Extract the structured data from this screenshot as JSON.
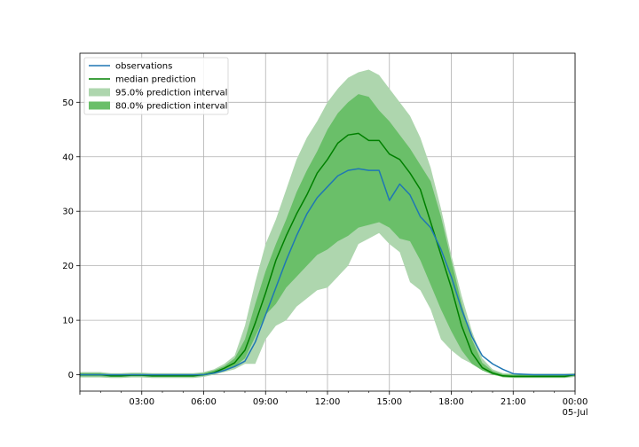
{
  "chart_data": {
    "type": "line",
    "title": "",
    "xlabel": "",
    "ylabel": "",
    "x_unit": "hours",
    "xlim": [
      0,
      24
    ],
    "ylim": [
      -3,
      59
    ],
    "grid": true,
    "legend_position": "top-left",
    "x_ticks": [
      {
        "value": 3,
        "label": "03:00"
      },
      {
        "value": 6,
        "label": "06:00"
      },
      {
        "value": 9,
        "label": "09:00"
      },
      {
        "value": 12,
        "label": "12:00"
      },
      {
        "value": 15,
        "label": "15:00"
      },
      {
        "value": 18,
        "label": "18:00"
      },
      {
        "value": 21,
        "label": "21:00"
      },
      {
        "value": 24,
        "label": "00:00",
        "sublabel": "05-Jul"
      }
    ],
    "y_ticks": [
      0,
      10,
      20,
      30,
      40,
      50
    ],
    "x": [
      0,
      0.5,
      1,
      1.5,
      2,
      2.5,
      3,
      3.5,
      4,
      4.5,
      5,
      5.5,
      6,
      6.5,
      7,
      7.5,
      8,
      8.5,
      9,
      9.5,
      10,
      10.5,
      11,
      11.5,
      12,
      12.5,
      13,
      13.5,
      14,
      14.5,
      15,
      15.5,
      16,
      16.5,
      17,
      17.5,
      18,
      18.5,
      19,
      19.5,
      20,
      20.5,
      21,
      21.5,
      22,
      22.5,
      23,
      23.5,
      24
    ],
    "series": [
      {
        "name": "observations",
        "type": "line",
        "color": "#1f77b4",
        "values": [
          0,
          0,
          0,
          0,
          0,
          0,
          0,
          0,
          0,
          0,
          0,
          0,
          0,
          0.3,
          0.8,
          1.5,
          2.5,
          6,
          11,
          16,
          21,
          25.5,
          29.5,
          32.5,
          34.5,
          36.5,
          37.5,
          37.8,
          37.5,
          37.5,
          32,
          35,
          33,
          29,
          27,
          23,
          18,
          12,
          7,
          3.5,
          2,
          1,
          0.2,
          0.1,
          0,
          0,
          0,
          0,
          0
        ]
      },
      {
        "name": "median prediction",
        "type": "line",
        "color": "#008000",
        "values": [
          0,
          0,
          0,
          -0.2,
          -0.2,
          -0.1,
          -0.1,
          -0.2,
          -0.2,
          -0.2,
          -0.2,
          -0.2,
          0,
          0.4,
          1.2,
          2.2,
          4.5,
          9.5,
          15,
          21,
          25.5,
          29.5,
          33,
          37,
          39.5,
          42.5,
          44,
          44.3,
          43,
          43,
          40.5,
          39.5,
          37,
          34,
          28,
          22,
          16,
          9,
          4,
          1.3,
          0.3,
          -0.2,
          -0.3,
          -0.3,
          -0.3,
          -0.3,
          -0.3,
          -0.3,
          0
        ]
      },
      {
        "name": "95.0% prediction interval",
        "type": "band",
        "color": "#aed6ae",
        "lower": [
          -0.5,
          -0.5,
          -0.5,
          -0.6,
          -0.6,
          -0.5,
          -0.5,
          -0.6,
          -0.6,
          -0.6,
          -0.6,
          -0.6,
          -0.4,
          0,
          0.5,
          1,
          2,
          2,
          6.5,
          9,
          10,
          12.5,
          14,
          15.5,
          16,
          18,
          20,
          24,
          25,
          26,
          24,
          22.5,
          17,
          15.5,
          12,
          6.5,
          4.5,
          3,
          2,
          0.8,
          0.2,
          -0.5,
          -0.6,
          -0.6,
          -0.6,
          -0.6,
          -0.6,
          -0.6,
          -0.4
        ],
        "upper": [
          0.5,
          0.5,
          0.5,
          0.3,
          0.3,
          0.4,
          0.4,
          0.3,
          0.3,
          0.3,
          0.3,
          0.3,
          0.5,
          1,
          2,
          3.5,
          9,
          17,
          24,
          28.5,
          34,
          39.5,
          43.5,
          46.5,
          50,
          52.5,
          54.5,
          55.5,
          56,
          55,
          52.5,
          50,
          47.5,
          43.5,
          38,
          30.5,
          22,
          14.5,
          8,
          3,
          1,
          0.3,
          0.2,
          0.2,
          0.2,
          0.2,
          0.2,
          0.2,
          0.3
        ]
      },
      {
        "name": "80.0% prediction interval",
        "type": "band",
        "color": "#6abf69",
        "lower": [
          -0.3,
          -0.3,
          -0.3,
          -0.4,
          -0.4,
          -0.3,
          -0.3,
          -0.4,
          -0.4,
          -0.4,
          -0.4,
          -0.4,
          -0.2,
          0.2,
          0.8,
          1.5,
          3,
          7,
          11,
          13,
          16,
          18,
          20,
          22,
          23,
          24.5,
          25.5,
          27,
          27.5,
          28,
          27,
          25,
          24.5,
          21,
          16.5,
          12,
          8,
          4.5,
          2,
          0.8,
          0,
          -0.4,
          -0.5,
          -0.5,
          -0.5,
          -0.5,
          -0.5,
          -0.5,
          -0.2
        ],
        "upper": [
          0.3,
          0.3,
          0.3,
          0.1,
          0.1,
          0.2,
          0.2,
          0.1,
          0.1,
          0.1,
          0.1,
          0.1,
          0.3,
          0.8,
          1.6,
          3,
          6.5,
          13,
          19,
          24,
          28.5,
          33.5,
          37.5,
          41,
          45,
          48,
          50,
          51.5,
          51,
          48.5,
          46.5,
          44,
          41.5,
          38.5,
          35.5,
          29,
          21,
          13,
          6.5,
          2.2,
          0.7,
          0.1,
          0,
          0,
          0,
          0,
          0,
          0,
          0.2
        ]
      }
    ]
  }
}
